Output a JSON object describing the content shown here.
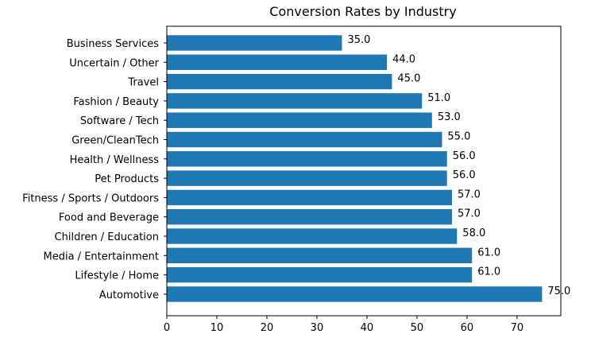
{
  "chart_data": {
    "type": "bar",
    "orientation": "horizontal",
    "title": "Conversion Rates by Industry",
    "xlabel": "",
    "ylabel": "",
    "categories": [
      "Business Services",
      "Uncertain / Other",
      "Travel",
      "Fashion / Beauty",
      "Software / Tech",
      "Green/CleanTech",
      "Health / Wellness",
      "Pet Products",
      "Fitness / Sports / Outdoors",
      "Food and Beverage",
      "Children / Education",
      "Media / Entertainment",
      "Lifestyle / Home",
      "Automotive"
    ],
    "values": [
      35.0,
      44.0,
      45.0,
      51.0,
      53.0,
      55.0,
      56.0,
      56.0,
      57.0,
      57.0,
      58.0,
      61.0,
      61.0,
      75.0
    ],
    "data_labels": [
      "35.0",
      "44.0",
      "45.0",
      "51.0",
      "53.0",
      "55.0",
      "56.0",
      "56.0",
      "57.0",
      "57.0",
      "58.0",
      "61.0",
      "61.0",
      "75.0"
    ],
    "x_ticks": [
      0,
      10,
      20,
      30,
      40,
      50,
      60,
      70
    ],
    "xlim": [
      0,
      78.75
    ],
    "grid": false,
    "bar_color": "#1f77b4"
  }
}
